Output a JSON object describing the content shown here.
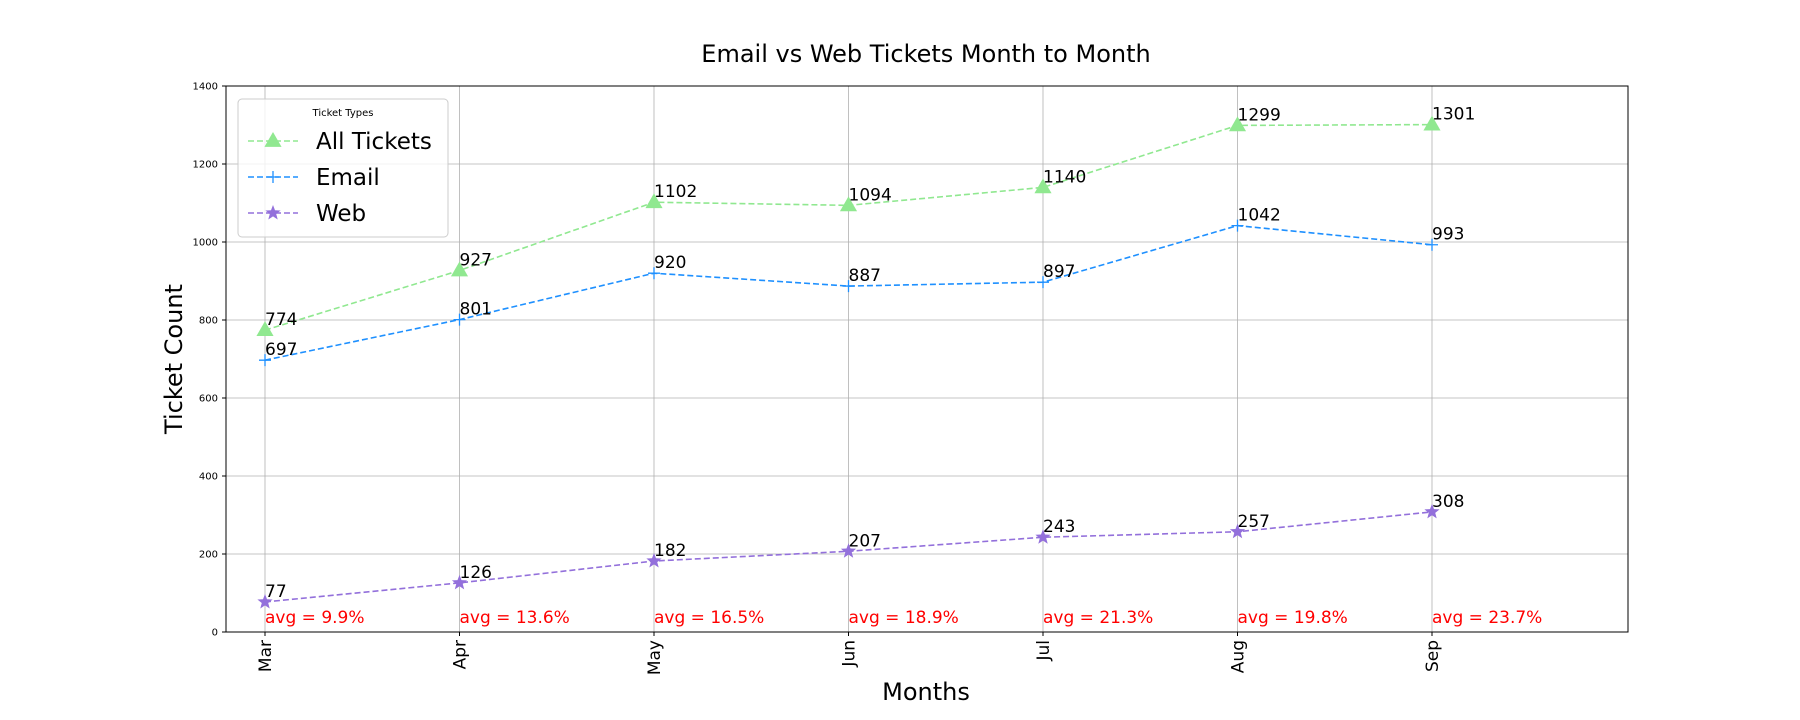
{
  "chart_data": {
    "type": "line",
    "title": "Email vs Web Tickets Month to Month",
    "xlabel": "Months",
    "ylabel": "Ticket Count",
    "categories": [
      "Mar",
      "Apr",
      "May",
      "Jun",
      "Jul",
      "Aug",
      "Sep"
    ],
    "ylim": [
      0,
      1400
    ],
    "yticks": [
      0,
      200,
      400,
      600,
      800,
      1000,
      1200,
      1400
    ],
    "grid": true,
    "legend": {
      "title": "Ticket Types",
      "placement": "top-left"
    },
    "series": [
      {
        "name": "All Tickets",
        "values": [
          774,
          927,
          1102,
          1094,
          1140,
          1299,
          1301
        ],
        "color": "#90e890",
        "marker": "triangle",
        "linestyle": "dashed"
      },
      {
        "name": "Email",
        "values": [
          697,
          801,
          920,
          887,
          897,
          1042,
          993
        ],
        "color": "#1e90ff",
        "marker": "plus",
        "linestyle": "dashed"
      },
      {
        "name": "Web",
        "values": [
          77,
          126,
          182,
          207,
          243,
          257,
          308
        ],
        "color": "#9370db",
        "marker": "star",
        "linestyle": "dashed"
      }
    ],
    "annotations": [
      "avg = 9.9%",
      "avg = 13.6%",
      "avg = 16.5%",
      "avg = 18.9%",
      "avg = 21.3%",
      "avg = 19.8%",
      "avg = 23.7%"
    ],
    "annotation_color": "#ff0000"
  }
}
